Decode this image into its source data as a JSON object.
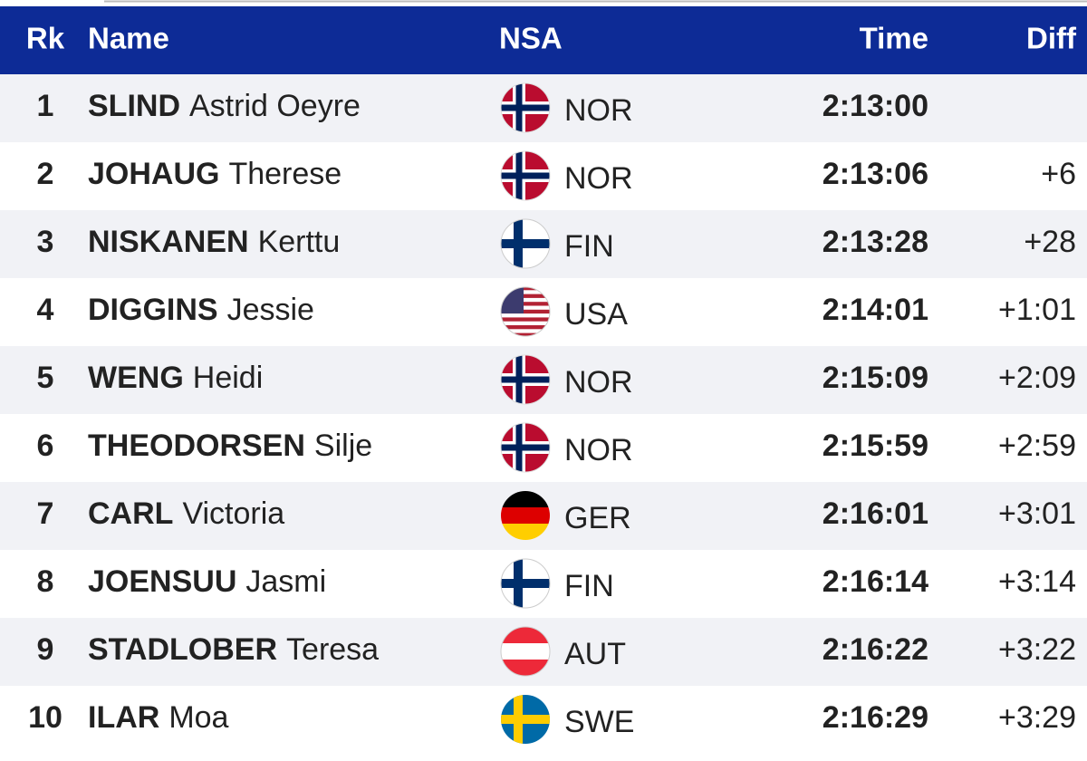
{
  "table": {
    "columns": [
      "Rk",
      "Name",
      "NSA",
      "Time",
      "Diff"
    ],
    "rows": [
      {
        "rank": "1",
        "surname": "SLIND",
        "first_name": "Astrid Oeyre",
        "nsa": "NOR",
        "time": "2:13:00"
      },
      {
        "rank": "2",
        "surname": "JOHAUG",
        "first_name": "Therese",
        "nsa": "NOR",
        "time": "2:13:06",
        "diff": "+6"
      },
      {
        "rank": "3",
        "surname": "NISKANEN",
        "first_name": "Kerttu",
        "nsa": "FIN",
        "time": "2:13:28",
        "diff": "+28"
      },
      {
        "rank": "4",
        "surname": "DIGGINS",
        "first_name": "Jessie",
        "nsa": "USA",
        "time": "2:14:01",
        "diff": "+1:01"
      },
      {
        "rank": "5",
        "surname": "WENG",
        "first_name": "Heidi",
        "nsa": "NOR",
        "time": "2:15:09",
        "diff": "+2:09"
      },
      {
        "rank": "6",
        "surname": "THEODORSEN",
        "first_name": "Silje",
        "nsa": "NOR",
        "time": "2:15:59",
        "diff": "+2:59"
      },
      {
        "rank": "7",
        "surname": "CARL",
        "first_name": "Victoria",
        "nsa": "GER",
        "time": "2:16:01",
        "diff": "+3:01"
      },
      {
        "rank": "8",
        "surname": "JOENSUU",
        "first_name": "Jasmi",
        "nsa": "FIN",
        "time": "2:16:14",
        "diff": "+3:14"
      },
      {
        "rank": "9",
        "surname": "STADLOBER",
        "first_name": "Teresa",
        "nsa": "AUT",
        "time": "2:16:22",
        "diff": "+3:22"
      },
      {
        "rank": "10",
        "surname": "ILAR",
        "first_name": "Moa",
        "nsa": "SWE",
        "time": "2:16:29",
        "diff": "+3:29"
      }
    ]
  }
}
